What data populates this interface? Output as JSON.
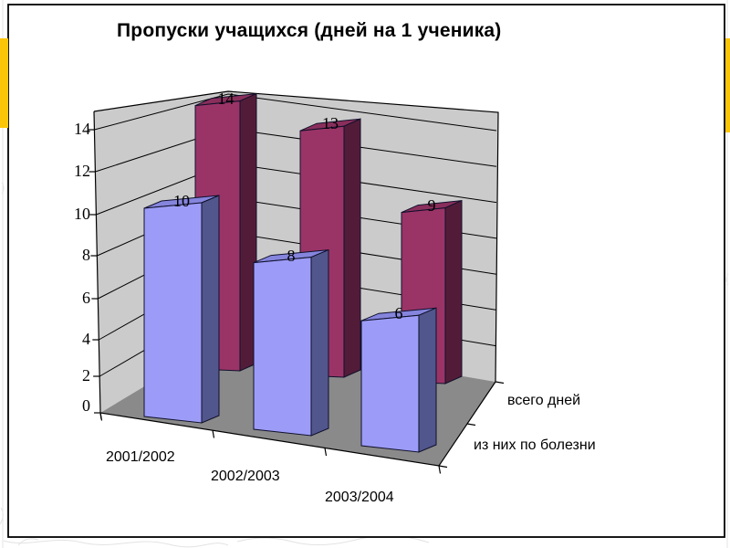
{
  "slide": {
    "background": "#FFFFFF",
    "accent_color": "#FCC608",
    "border_color": "#000000"
  },
  "chart": {
    "wall_color": "#CBCBCB",
    "floor_color": "#8A8A8A",
    "gridline_color": "#000000",
    "plot_background": "#FFFFFF"
  },
  "chart_data": {
    "type": "bar",
    "subtype": "3d-column",
    "title": "Пропуски учащихся (дней на 1 ученика)",
    "categories": [
      "2001/2002",
      "2002/2003",
      "2003/2004"
    ],
    "series": [
      {
        "name": "всего дней",
        "row": "back",
        "values": [
          14,
          13,
          9
        ],
        "color_front": "#9A3467",
        "color_top": "#8A2E5B",
        "color_side": "#521C38"
      },
      {
        "name": "из них по болезни",
        "row": "front",
        "values": [
          10,
          8,
          6
        ],
        "color_front": "#9C9CF8",
        "color_top": "#8585DE",
        "color_side": "#51568C"
      }
    ],
    "data_labels_visible": true,
    "value_axis": {
      "min": 0,
      "max": 14,
      "step": 2,
      "ticks": [
        "0",
        "2",
        "4",
        "6",
        "8",
        "10",
        "12",
        "14"
      ]
    },
    "series_axis_labels": [
      "всего дней",
      "из них по болезни"
    ],
    "legend_position": "none",
    "grid": "major horizontal gridlines on 3d walls"
  }
}
